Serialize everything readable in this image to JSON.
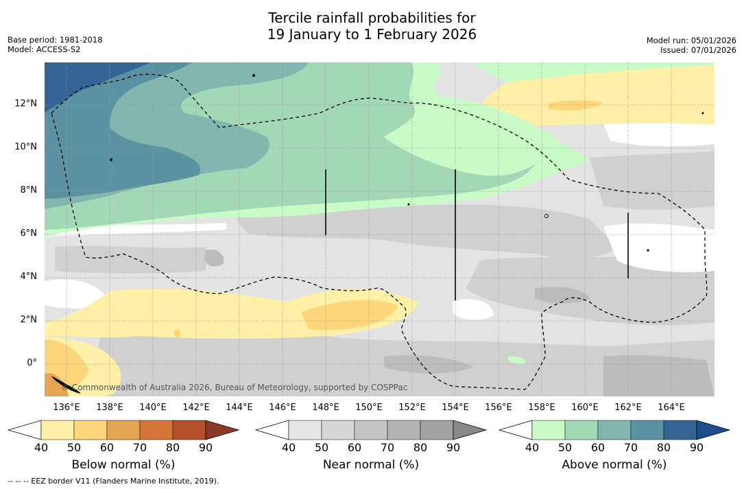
{
  "title": {
    "line1": "Tercile rainfall probabilities for",
    "line2": "19 January to 1 February 2026"
  },
  "meta_left": {
    "base_period": "Base period: 1981-2018",
    "model": "Model: ACCESS-S2"
  },
  "meta_right": {
    "model_run": "Model run: 05/01/2026",
    "issued": "Issued: 07/01/2026"
  },
  "map": {
    "lat_labels": [
      "12°N",
      "10°N",
      "8°N",
      "6°N",
      "4°N",
      "2°N",
      "0°"
    ],
    "lon_labels": [
      "136°E",
      "138°E",
      "140°E",
      "142°E",
      "144°E",
      "146°E",
      "148°E",
      "150°E",
      "152°E",
      "154°E",
      "156°E",
      "158°E",
      "160°E",
      "162°E",
      "164°E"
    ],
    "copyright": "© Commonwealth of Australia 2026, Bureau of Meteorology, supported by COSPPac"
  },
  "colorbars": [
    {
      "label": "Below normal (%)",
      "ticks": [
        "40",
        "50",
        "60",
        "70",
        "80",
        "90"
      ],
      "colors": [
        "#fff0a8",
        "#fdd57a",
        "#e6a554",
        "#d6753a",
        "#b34f2b",
        "#8c3a26"
      ]
    },
    {
      "label": "Near normal (%)",
      "ticks": [
        "40",
        "50",
        "60",
        "70",
        "80",
        "90"
      ],
      "colors": [
        "#e6e6e6",
        "#d6d6d6",
        "#c4c4c4",
        "#b3b3b3",
        "#a1a1a1",
        "#888888"
      ]
    },
    {
      "label": "Above normal (%)",
      "ticks": [
        "40",
        "50",
        "60",
        "70",
        "80",
        "90"
      ],
      "colors": [
        "#c9fbc7",
        "#a3d8b7",
        "#82b6ae",
        "#5a92a2",
        "#346494",
        "#1a4d8a"
      ]
    }
  ],
  "footer": "-- -- -- EEZ border V11 (Flanders Marine Institute, 2019)."
}
